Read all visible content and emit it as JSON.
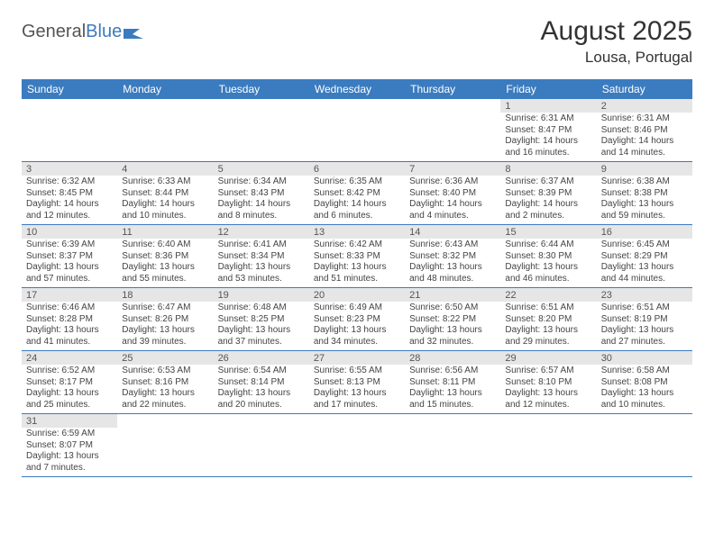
{
  "brand": {
    "part1": "General",
    "part2": "Blue"
  },
  "title": "August 2025",
  "location": "Lousa, Portugal",
  "colors": {
    "header_bg": "#3b7bbf",
    "header_fg": "#ffffff",
    "daynum_bg": "#e6e6e6",
    "border": "#3b7bbf",
    "text": "#333333",
    "logo_gray": "#555555",
    "logo_blue": "#3b7bbf",
    "background": "#ffffff"
  },
  "typography": {
    "title_fontsize": 30,
    "location_fontsize": 17,
    "logo_fontsize": 20,
    "weekday_fontsize": 12,
    "daynum_fontsize": 11,
    "body_fontsize": 10
  },
  "weekdays": [
    "Sunday",
    "Monday",
    "Tuesday",
    "Wednesday",
    "Thursday",
    "Friday",
    "Saturday"
  ],
  "layout": {
    "first_day_column": 5,
    "days_in_month": 31,
    "columns": 7
  },
  "days": [
    {
      "n": 1,
      "sunrise": "6:31 AM",
      "sunset": "8:47 PM",
      "daylight": "14 hours and 16 minutes."
    },
    {
      "n": 2,
      "sunrise": "6:31 AM",
      "sunset": "8:46 PM",
      "daylight": "14 hours and 14 minutes."
    },
    {
      "n": 3,
      "sunrise": "6:32 AM",
      "sunset": "8:45 PM",
      "daylight": "14 hours and 12 minutes."
    },
    {
      "n": 4,
      "sunrise": "6:33 AM",
      "sunset": "8:44 PM",
      "daylight": "14 hours and 10 minutes."
    },
    {
      "n": 5,
      "sunrise": "6:34 AM",
      "sunset": "8:43 PM",
      "daylight": "14 hours and 8 minutes."
    },
    {
      "n": 6,
      "sunrise": "6:35 AM",
      "sunset": "8:42 PM",
      "daylight": "14 hours and 6 minutes."
    },
    {
      "n": 7,
      "sunrise": "6:36 AM",
      "sunset": "8:40 PM",
      "daylight": "14 hours and 4 minutes."
    },
    {
      "n": 8,
      "sunrise": "6:37 AM",
      "sunset": "8:39 PM",
      "daylight": "14 hours and 2 minutes."
    },
    {
      "n": 9,
      "sunrise": "6:38 AM",
      "sunset": "8:38 PM",
      "daylight": "13 hours and 59 minutes."
    },
    {
      "n": 10,
      "sunrise": "6:39 AM",
      "sunset": "8:37 PM",
      "daylight": "13 hours and 57 minutes."
    },
    {
      "n": 11,
      "sunrise": "6:40 AM",
      "sunset": "8:36 PM",
      "daylight": "13 hours and 55 minutes."
    },
    {
      "n": 12,
      "sunrise": "6:41 AM",
      "sunset": "8:34 PM",
      "daylight": "13 hours and 53 minutes."
    },
    {
      "n": 13,
      "sunrise": "6:42 AM",
      "sunset": "8:33 PM",
      "daylight": "13 hours and 51 minutes."
    },
    {
      "n": 14,
      "sunrise": "6:43 AM",
      "sunset": "8:32 PM",
      "daylight": "13 hours and 48 minutes."
    },
    {
      "n": 15,
      "sunrise": "6:44 AM",
      "sunset": "8:30 PM",
      "daylight": "13 hours and 46 minutes."
    },
    {
      "n": 16,
      "sunrise": "6:45 AM",
      "sunset": "8:29 PM",
      "daylight": "13 hours and 44 minutes."
    },
    {
      "n": 17,
      "sunrise": "6:46 AM",
      "sunset": "8:28 PM",
      "daylight": "13 hours and 41 minutes."
    },
    {
      "n": 18,
      "sunrise": "6:47 AM",
      "sunset": "8:26 PM",
      "daylight": "13 hours and 39 minutes."
    },
    {
      "n": 19,
      "sunrise": "6:48 AM",
      "sunset": "8:25 PM",
      "daylight": "13 hours and 37 minutes."
    },
    {
      "n": 20,
      "sunrise": "6:49 AM",
      "sunset": "8:23 PM",
      "daylight": "13 hours and 34 minutes."
    },
    {
      "n": 21,
      "sunrise": "6:50 AM",
      "sunset": "8:22 PM",
      "daylight": "13 hours and 32 minutes."
    },
    {
      "n": 22,
      "sunrise": "6:51 AM",
      "sunset": "8:20 PM",
      "daylight": "13 hours and 29 minutes."
    },
    {
      "n": 23,
      "sunrise": "6:51 AM",
      "sunset": "8:19 PM",
      "daylight": "13 hours and 27 minutes."
    },
    {
      "n": 24,
      "sunrise": "6:52 AM",
      "sunset": "8:17 PM",
      "daylight": "13 hours and 25 minutes."
    },
    {
      "n": 25,
      "sunrise": "6:53 AM",
      "sunset": "8:16 PM",
      "daylight": "13 hours and 22 minutes."
    },
    {
      "n": 26,
      "sunrise": "6:54 AM",
      "sunset": "8:14 PM",
      "daylight": "13 hours and 20 minutes."
    },
    {
      "n": 27,
      "sunrise": "6:55 AM",
      "sunset": "8:13 PM",
      "daylight": "13 hours and 17 minutes."
    },
    {
      "n": 28,
      "sunrise": "6:56 AM",
      "sunset": "8:11 PM",
      "daylight": "13 hours and 15 minutes."
    },
    {
      "n": 29,
      "sunrise": "6:57 AM",
      "sunset": "8:10 PM",
      "daylight": "13 hours and 12 minutes."
    },
    {
      "n": 30,
      "sunrise": "6:58 AM",
      "sunset": "8:08 PM",
      "daylight": "13 hours and 10 minutes."
    },
    {
      "n": 31,
      "sunrise": "6:59 AM",
      "sunset": "8:07 PM",
      "daylight": "13 hours and 7 minutes."
    }
  ],
  "labels": {
    "sunrise_prefix": "Sunrise: ",
    "sunset_prefix": "Sunset: ",
    "daylight_prefix": "Daylight: "
  }
}
